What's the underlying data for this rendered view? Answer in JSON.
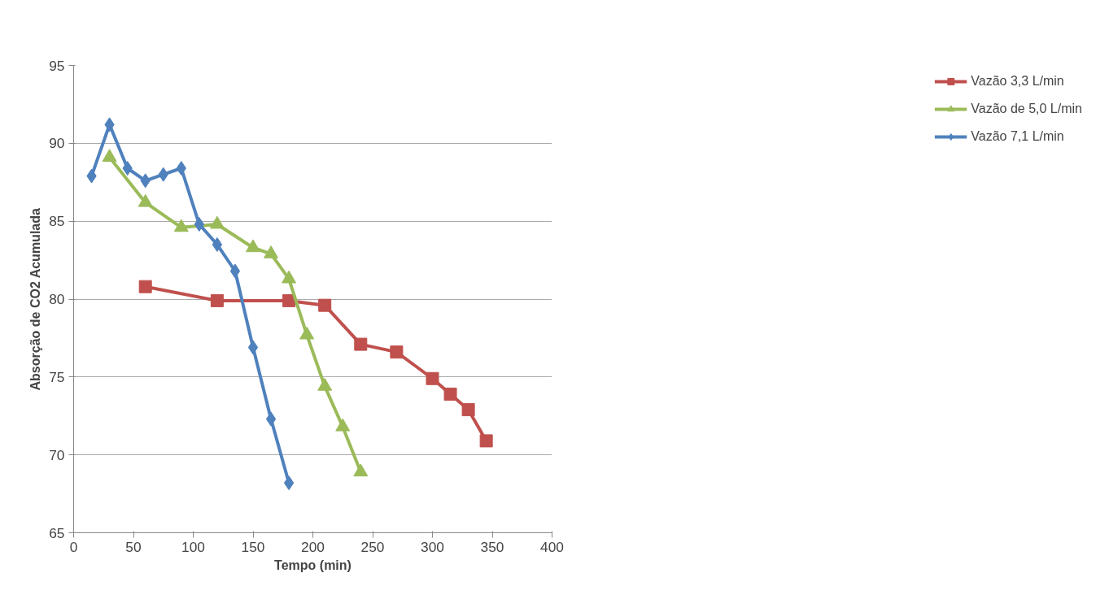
{
  "chart_data": {
    "type": "line",
    "xlabel": "Tempo (min)",
    "ylabel": "Absorção de CO2 Acumulada",
    "xlim": [
      0,
      400
    ],
    "xticks": [
      0,
      50,
      100,
      150,
      200,
      250,
      300,
      350,
      400
    ],
    "ylim": [
      65,
      95
    ],
    "yticks": [
      65,
      70,
      75,
      80,
      85,
      90,
      95
    ],
    "grid": "y",
    "legend": "right",
    "series": [
      {
        "name": "Vazão 3,3 L/min",
        "color": "#c0504d",
        "marker": "square",
        "x": [
          60,
          120,
          180,
          210,
          240,
          270,
          300,
          315,
          330,
          345
        ],
        "values": [
          80.8,
          79.9,
          79.9,
          79.6,
          77.1,
          76.6,
          74.9,
          73.9,
          72.9,
          70.9
        ]
      },
      {
        "name": "Vazão de 5,0 L/min",
        "color": "#9bbb59",
        "marker": "triangle",
        "x": [
          30,
          60,
          90,
          120,
          150,
          165,
          180,
          195,
          210,
          225,
          240
        ],
        "values": [
          89.1,
          86.2,
          84.6,
          84.8,
          83.3,
          82.9,
          81.3,
          77.7,
          74.4,
          71.8,
          68.9
        ]
      },
      {
        "name": "Vazão 7,1 L/min",
        "color": "#4f81bd",
        "marker": "diamond",
        "x": [
          15,
          30,
          45,
          60,
          75,
          90,
          105,
          120,
          135,
          150,
          165,
          180
        ],
        "values": [
          87.9,
          91.2,
          88.4,
          87.6,
          88.0,
          88.4,
          84.8,
          83.5,
          81.8,
          76.9,
          72.3,
          68.2
        ]
      }
    ]
  }
}
